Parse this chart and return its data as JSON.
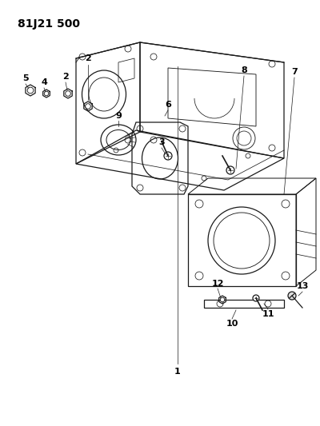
{
  "title": "81J21 500",
  "bg_color": "#ffffff",
  "line_color": "#1a1a1a",
  "label_color": "#000000",
  "figsize": [
    4.0,
    5.33
  ],
  "dpi": 100
}
